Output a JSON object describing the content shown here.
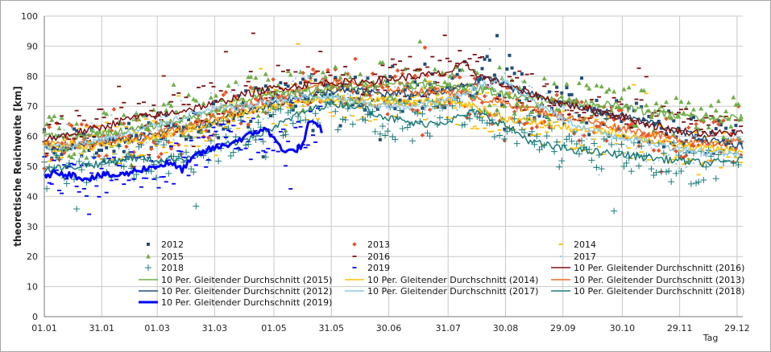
{
  "chart_data": {
    "type": "scatter",
    "title": "",
    "xlabel": "Tag",
    "ylabel": "theoretische Reichweite [km]",
    "ylim": [
      0,
      100
    ],
    "yticks": [
      0,
      10,
      20,
      30,
      40,
      50,
      60,
      70,
      80,
      90,
      100
    ],
    "xlim": [
      0,
      365
    ],
    "xticks": [
      {
        "label": "01.01",
        "day": 0
      },
      {
        "label": "31.01",
        "day": 30
      },
      {
        "label": "01.03",
        "day": 59
      },
      {
        "label": "31.03",
        "day": 89
      },
      {
        "label": "01.05",
        "day": 120
      },
      {
        "label": "31.05",
        "day": 150
      },
      {
        "label": "30.06",
        "day": 180
      },
      {
        "label": "31.07",
        "day": 211
      },
      {
        "label": "30.08",
        "day": 241
      },
      {
        "label": "29.09",
        "day": 271
      },
      {
        "label": "30.10",
        "day": 302
      },
      {
        "label": "29.11",
        "day": 332
      },
      {
        "label": "29.12",
        "day": 362
      }
    ],
    "grid": true,
    "legend_position": "bottom-inside",
    "points": [
      {
        "name": "2012",
        "marker": "square",
        "color": "#1f4e79",
        "anchors": [
          [
            0,
            56
          ],
          [
            20,
            56
          ],
          [
            40,
            58
          ],
          [
            60,
            61
          ],
          [
            80,
            64
          ],
          [
            100,
            68
          ],
          [
            120,
            72
          ],
          [
            140,
            75
          ],
          [
            160,
            74
          ],
          [
            180,
            73
          ],
          [
            200,
            74
          ],
          [
            215,
            76
          ],
          [
            228,
            82
          ],
          [
            240,
            77
          ],
          [
            260,
            72
          ],
          [
            280,
            68
          ],
          [
            300,
            66
          ],
          [
            320,
            63
          ],
          [
            340,
            60
          ],
          [
            365,
            57
          ]
        ]
      },
      {
        "name": "2013",
        "marker": "diamond",
        "color": "#e8542a",
        "anchors": [
          [
            0,
            58
          ],
          [
            20,
            57
          ],
          [
            40,
            58
          ],
          [
            60,
            60
          ],
          [
            80,
            64
          ],
          [
            100,
            69
          ],
          [
            120,
            73
          ],
          [
            140,
            77
          ],
          [
            160,
            78
          ],
          [
            180,
            76
          ],
          [
            200,
            75
          ],
          [
            220,
            73
          ],
          [
            240,
            71
          ],
          [
            260,
            68
          ],
          [
            280,
            65
          ],
          [
            300,
            63
          ],
          [
            320,
            61
          ],
          [
            340,
            59
          ],
          [
            365,
            58
          ]
        ]
      },
      {
        "name": "2014",
        "marker": "dash",
        "color": "#ffc000",
        "anchors": [
          [
            0,
            57
          ],
          [
            20,
            57
          ],
          [
            40,
            58
          ],
          [
            60,
            60
          ],
          [
            80,
            63
          ],
          [
            100,
            67
          ],
          [
            120,
            70
          ],
          [
            140,
            72
          ],
          [
            160,
            72
          ],
          [
            180,
            72
          ],
          [
            200,
            72
          ],
          [
            220,
            70
          ],
          [
            240,
            66
          ],
          [
            260,
            64
          ],
          [
            280,
            62
          ],
          [
            300,
            60
          ],
          [
            320,
            58
          ],
          [
            340,
            56
          ],
          [
            365,
            55
          ]
        ]
      },
      {
        "name": "2015",
        "marker": "triangle",
        "color": "#70ad47",
        "anchors": [
          [
            0,
            60
          ],
          [
            20,
            60
          ],
          [
            40,
            62
          ],
          [
            60,
            64
          ],
          [
            80,
            68
          ],
          [
            100,
            72
          ],
          [
            120,
            75
          ],
          [
            140,
            76
          ],
          [
            160,
            77
          ],
          [
            180,
            78
          ],
          [
            200,
            77
          ],
          [
            220,
            76
          ],
          [
            240,
            74
          ],
          [
            260,
            72
          ],
          [
            280,
            71
          ],
          [
            300,
            70
          ],
          [
            320,
            68
          ],
          [
            340,
            67
          ],
          [
            365,
            66
          ]
        ]
      },
      {
        "name": "2016",
        "marker": "dash",
        "color": "#7b1113",
        "anchors": [
          [
            0,
            60
          ],
          [
            20,
            62
          ],
          [
            40,
            65
          ],
          [
            60,
            67
          ],
          [
            80,
            70
          ],
          [
            100,
            74
          ],
          [
            120,
            77
          ],
          [
            140,
            78
          ],
          [
            160,
            78
          ],
          [
            180,
            79
          ],
          [
            200,
            80
          ],
          [
            220,
            82
          ],
          [
            240,
            77
          ],
          [
            260,
            73
          ],
          [
            280,
            70
          ],
          [
            300,
            67
          ],
          [
            320,
            64
          ],
          [
            340,
            62
          ],
          [
            365,
            61
          ]
        ]
      },
      {
        "name": "2017",
        "marker": "dot",
        "color": "#8ecae6",
        "anchors": [
          [
            0,
            56
          ],
          [
            20,
            58
          ],
          [
            40,
            61
          ],
          [
            60,
            64
          ],
          [
            80,
            68
          ],
          [
            100,
            70
          ],
          [
            120,
            72
          ],
          [
            140,
            74
          ],
          [
            160,
            72
          ],
          [
            180,
            70
          ],
          [
            200,
            72
          ],
          [
            220,
            76
          ],
          [
            240,
            78
          ],
          [
            260,
            70
          ],
          [
            280,
            64
          ],
          [
            300,
            60
          ],
          [
            320,
            57
          ],
          [
            340,
            55
          ],
          [
            365,
            54
          ]
        ]
      },
      {
        "name": "2018",
        "marker": "plus",
        "color": "#1b7c7c",
        "anchors": [
          [
            0,
            49
          ],
          [
            20,
            51
          ],
          [
            40,
            53
          ],
          [
            60,
            52
          ],
          [
            80,
            55
          ],
          [
            100,
            60
          ],
          [
            120,
            66
          ],
          [
            140,
            71
          ],
          [
            160,
            68
          ],
          [
            180,
            64
          ],
          [
            200,
            66
          ],
          [
            220,
            69
          ],
          [
            240,
            63
          ],
          [
            260,
            57
          ],
          [
            280,
            55
          ],
          [
            300,
            54
          ],
          [
            320,
            52
          ],
          [
            340,
            51
          ],
          [
            365,
            52
          ]
        ]
      },
      {
        "name": "2019",
        "marker": "dash",
        "color": "#0000ff",
        "anchors": [
          [
            0,
            47
          ],
          [
            20,
            46
          ],
          [
            40,
            48
          ],
          [
            60,
            49
          ],
          [
            70,
            51
          ],
          [
            80,
            55
          ],
          [
            100,
            60
          ],
          [
            120,
            55
          ],
          [
            140,
            62
          ],
          [
            145,
            63
          ]
        ]
      }
    ],
    "series": [
      {
        "name": "10 Per. Gleitender Durchschnitt (2012)",
        "color": "#1f4e79",
        "width": 1.5,
        "x": [
          0,
          15,
          30,
          45,
          60,
          75,
          90,
          105,
          120,
          135,
          150,
          165,
          180,
          195,
          210,
          225,
          232,
          240,
          255,
          270,
          285,
          300,
          315,
          330,
          345,
          365
        ],
        "y": [
          56,
          57,
          58,
          59,
          61,
          63,
          65,
          68,
          71,
          73,
          75,
          75,
          74,
          74,
          75,
          78,
          80,
          77,
          74,
          71,
          69,
          67,
          65,
          62,
          59,
          57
        ]
      },
      {
        "name": "10 Per. Gleitender Durchschnitt (2013)",
        "color": "#f16a21",
        "width": 1.5,
        "x": [
          0,
          15,
          30,
          45,
          60,
          75,
          90,
          105,
          120,
          135,
          150,
          165,
          180,
          195,
          210,
          225,
          240,
          255,
          270,
          285,
          300,
          315,
          330,
          345,
          365
        ],
        "y": [
          58,
          57,
          58,
          59,
          61,
          63,
          67,
          70,
          73,
          76,
          78,
          77,
          76,
          75,
          75,
          73,
          71,
          69,
          67,
          65,
          63,
          61,
          59,
          58,
          58
        ]
      },
      {
        "name": "10 Per. Gleitender Durchschnitt (2014)",
        "color": "#ffc000",
        "width": 1.5,
        "x": [
          0,
          15,
          30,
          45,
          60,
          75,
          90,
          105,
          120,
          135,
          150,
          165,
          180,
          195,
          210,
          225,
          240,
          255,
          270,
          285,
          300,
          315,
          330,
          345,
          365
        ],
        "y": [
          57,
          57,
          57,
          58,
          60,
          62,
          65,
          68,
          70,
          72,
          72,
          72,
          72,
          71,
          72,
          70,
          66,
          65,
          63,
          62,
          61,
          59,
          57,
          56,
          55
        ]
      },
      {
        "name": "10 Per. Gleitender Durchschnitt (2015)",
        "color": "#70ad47",
        "width": 1.5,
        "x": [
          0,
          15,
          30,
          45,
          60,
          75,
          90,
          105,
          120,
          135,
          150,
          165,
          180,
          195,
          210,
          225,
          240,
          255,
          270,
          285,
          300,
          315,
          330,
          345,
          365
        ],
        "y": [
          60,
          60,
          61,
          62,
          64,
          66,
          69,
          72,
          74,
          75,
          76,
          77,
          78,
          77,
          77,
          76,
          74,
          73,
          72,
          71,
          70,
          68,
          67,
          66,
          66
        ]
      },
      {
        "name": "10 Per. Gleitender Durchschnitt (2016)",
        "color": "#7b1113",
        "width": 1.5,
        "x": [
          0,
          15,
          30,
          45,
          60,
          75,
          90,
          105,
          120,
          135,
          150,
          165,
          180,
          195,
          210,
          220,
          228,
          240,
          255,
          270,
          285,
          300,
          315,
          330,
          345,
          365
        ],
        "y": [
          59,
          61,
          63,
          66,
          67,
          69,
          71,
          74,
          76,
          77,
          78,
          78,
          79,
          80,
          81,
          84,
          80,
          77,
          74,
          71,
          69,
          67,
          64,
          62,
          61,
          61
        ]
      },
      {
        "name": "10 Per. Gleitender Durchschnitt (2017)",
        "color": "#8ecae6",
        "width": 1.5,
        "x": [
          0,
          15,
          30,
          45,
          60,
          75,
          90,
          105,
          120,
          135,
          150,
          165,
          180,
          195,
          210,
          225,
          240,
          255,
          270,
          285,
          300,
          315,
          330,
          345,
          365
        ],
        "y": [
          56,
          57,
          59,
          61,
          64,
          67,
          69,
          70,
          72,
          73,
          73,
          71,
          70,
          70,
          72,
          76,
          79,
          72,
          66,
          62,
          60,
          58,
          56,
          55,
          54
        ]
      },
      {
        "name": "10 Per. Gleitender Durchschnitt (2018)",
        "color": "#1b7c7c",
        "width": 1.5,
        "x": [
          0,
          15,
          30,
          45,
          60,
          75,
          90,
          105,
          120,
          135,
          150,
          165,
          180,
          195,
          210,
          225,
          240,
          255,
          270,
          285,
          300,
          315,
          330,
          345,
          365
        ],
        "y": [
          49,
          50,
          51,
          53,
          52,
          53,
          56,
          59,
          63,
          68,
          71,
          70,
          66,
          64,
          65,
          68,
          64,
          58,
          56,
          55,
          54,
          53,
          52,
          51,
          52
        ]
      },
      {
        "name": "10 Per. Gleitender Durchschnitt (2019)",
        "color": "#0000ff",
        "width": 3,
        "x": [
          0,
          8,
          15,
          22,
          30,
          40,
          50,
          58,
          65,
          72,
          80,
          88,
          95,
          102,
          110,
          115,
          120,
          126,
          130,
          135,
          138,
          142,
          145
        ],
        "y": [
          47,
          48,
          47,
          46,
          47,
          47,
          49,
          50,
          51,
          49,
          54,
          56,
          57,
          59,
          61,
          63,
          59,
          55,
          55,
          57,
          64,
          64,
          62
        ]
      }
    ],
    "legend": [
      {
        "label": "2012",
        "kind": "square",
        "color": "#1f4e79"
      },
      {
        "label": "2013",
        "kind": "diamond",
        "color": "#e8542a"
      },
      {
        "label": "2014",
        "kind": "dash",
        "color": "#ffc000"
      },
      {
        "label": "2015",
        "kind": "triangle",
        "color": "#70ad47"
      },
      {
        "label": "2016",
        "kind": "dash",
        "color": "#7b1113"
      },
      {
        "label": "2017",
        "kind": "dot",
        "color": "#8ecae6"
      },
      {
        "label": "2018",
        "kind": "plus",
        "color": "#1b7c7c"
      },
      {
        "label": "2019",
        "kind": "dash",
        "color": "#0000ff"
      },
      {
        "label": "10 Per. Gleitender Durchschnitt (2016)",
        "kind": "line",
        "color": "#7b1113"
      },
      {
        "label": "10 Per. Gleitender Durchschnitt (2015)",
        "kind": "line",
        "color": "#70ad47"
      },
      {
        "label": "10 Per. Gleitender Durchschnitt (2014)",
        "kind": "line",
        "color": "#ffc000"
      },
      {
        "label": "10 Per. Gleitender Durchschnitt (2013)",
        "kind": "line",
        "color": "#f16a21"
      },
      {
        "label": "10 Per. Gleitender Durchschnitt (2012)",
        "kind": "line",
        "color": "#1f4e79"
      },
      {
        "label": "10 Per. Gleitender Durchschnitt (2017)",
        "kind": "line",
        "color": "#8ecae6"
      },
      {
        "label": "10 Per. Gleitender Durchschnitt (2018)",
        "kind": "line",
        "color": "#1b7c7c"
      },
      {
        "label": "10 Per. Gleitender Durchschnitt (2019)",
        "kind": "thickline",
        "color": "#0000ff"
      }
    ]
  }
}
